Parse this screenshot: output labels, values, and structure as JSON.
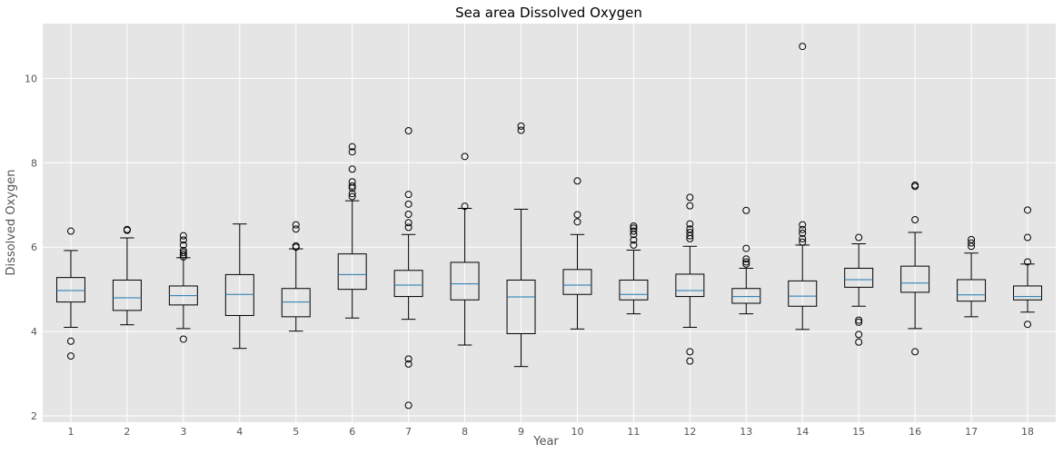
{
  "chart_data": {
    "type": "boxplot",
    "title": "Sea area Dissolved Oxygen",
    "xlabel": "Year",
    "ylabel": "Dissolved Oxygen",
    "ylim": [
      1.85,
      11.3
    ],
    "yticks": [
      2,
      4,
      6,
      8,
      10
    ],
    "grid": true,
    "colors": {
      "background": "#e5e5e5",
      "grid": "#ffffff",
      "box": "#000000",
      "median": "#1f77b4"
    },
    "boxes": [
      {
        "label": "1",
        "whislo": 4.1,
        "q1": 4.7,
        "med": 4.97,
        "q3": 5.28,
        "whishi": 5.92,
        "fliers": [
          6.38,
          3.77,
          3.42
        ]
      },
      {
        "label": "2",
        "whislo": 4.16,
        "q1": 4.5,
        "med": 4.8,
        "q3": 5.22,
        "whishi": 6.22,
        "fliers": [
          6.4,
          6.42
        ]
      },
      {
        "label": "3",
        "whislo": 4.07,
        "q1": 4.63,
        "med": 4.85,
        "q3": 5.08,
        "whishi": 5.75,
        "fliers": [
          6.27,
          6.17,
          6.05,
          5.92,
          5.87,
          5.82,
          5.77,
          3.82
        ]
      },
      {
        "label": "4",
        "whislo": 3.6,
        "q1": 4.38,
        "med": 4.88,
        "q3": 5.35,
        "whishi": 6.55,
        "fliers": []
      },
      {
        "label": "5",
        "whislo": 4.01,
        "q1": 4.35,
        "med": 4.7,
        "q3": 5.02,
        "whishi": 5.96,
        "fliers": [
          6.53,
          6.43,
          6.03,
          6.0
        ]
      },
      {
        "label": "6",
        "whislo": 4.32,
        "q1": 5.0,
        "med": 5.35,
        "q3": 5.84,
        "whishi": 7.1,
        "fliers": [
          8.38,
          8.26,
          7.85,
          7.55,
          7.45,
          7.4,
          7.27,
          7.2
        ]
      },
      {
        "label": "7",
        "whislo": 4.29,
        "q1": 4.83,
        "med": 5.1,
        "q3": 5.45,
        "whishi": 6.3,
        "fliers": [
          8.76,
          7.25,
          7.02,
          6.78,
          6.58,
          6.47,
          3.35,
          3.23,
          2.25
        ]
      },
      {
        "label": "8",
        "whislo": 3.68,
        "q1": 4.75,
        "med": 5.13,
        "q3": 5.64,
        "whishi": 6.92,
        "fliers": [
          8.15,
          6.97
        ]
      },
      {
        "label": "9",
        "whislo": 3.17,
        "q1": 3.95,
        "med": 4.82,
        "q3": 5.22,
        "whishi": 6.9,
        "fliers": [
          8.87,
          8.77
        ]
      },
      {
        "label": "10",
        "whislo": 4.06,
        "q1": 4.88,
        "med": 5.1,
        "q3": 5.47,
        "whishi": 6.3,
        "fliers": [
          7.57,
          6.77,
          6.6
        ]
      },
      {
        "label": "11",
        "whislo": 4.42,
        "q1": 4.75,
        "med": 4.88,
        "q3": 5.22,
        "whishi": 5.93,
        "fliers": [
          6.5,
          6.45,
          6.38,
          6.3,
          6.17,
          6.05
        ]
      },
      {
        "label": "12",
        "whislo": 4.1,
        "q1": 4.83,
        "med": 4.97,
        "q3": 5.36,
        "whishi": 6.02,
        "fliers": [
          7.18,
          6.98,
          6.55,
          6.43,
          6.35,
          6.27,
          6.2,
          3.52,
          3.3
        ]
      },
      {
        "label": "13",
        "whislo": 4.42,
        "q1": 4.67,
        "med": 4.83,
        "q3": 5.02,
        "whishi": 5.5,
        "fliers": [
          6.87,
          5.97,
          5.72,
          5.65,
          5.6
        ]
      },
      {
        "label": "14",
        "whislo": 4.05,
        "q1": 4.6,
        "med": 4.84,
        "q3": 5.2,
        "whishi": 6.05,
        "fliers": [
          10.76,
          6.53,
          6.42,
          6.33,
          6.2,
          6.12
        ]
      },
      {
        "label": "15",
        "whislo": 4.6,
        "q1": 5.05,
        "med": 5.23,
        "q3": 5.5,
        "whishi": 6.08,
        "fliers": [
          6.23,
          4.27,
          4.22,
          3.93,
          3.75
        ]
      },
      {
        "label": "16",
        "whislo": 4.07,
        "q1": 4.93,
        "med": 5.15,
        "q3": 5.55,
        "whishi": 6.35,
        "fliers": [
          7.47,
          7.44,
          6.65,
          3.52
        ]
      },
      {
        "label": "17",
        "whislo": 4.35,
        "q1": 4.72,
        "med": 4.87,
        "q3": 5.23,
        "whishi": 5.86,
        "fliers": [
          6.18,
          6.1,
          6.02
        ]
      },
      {
        "label": "18",
        "whislo": 4.46,
        "q1": 4.75,
        "med": 4.83,
        "q3": 5.08,
        "whishi": 5.6,
        "fliers": [
          6.88,
          6.23,
          5.65,
          4.17
        ]
      }
    ]
  }
}
